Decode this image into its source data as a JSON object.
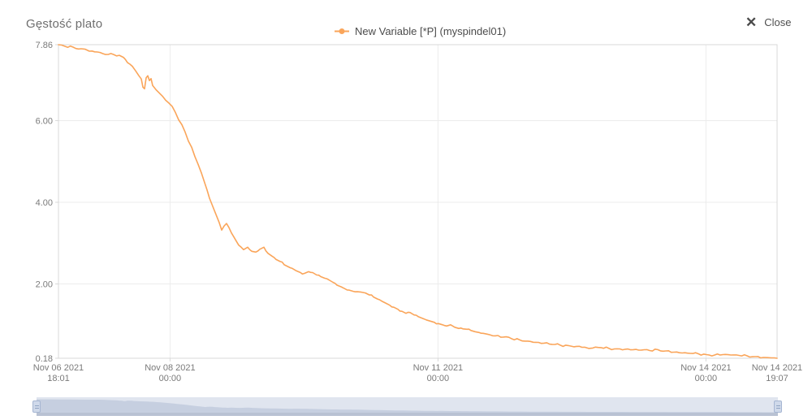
{
  "close_button": {
    "label": "Close",
    "icon": "✕"
  },
  "chart_data": {
    "type": "line",
    "title": "Gęstość plato",
    "legend": {
      "position": "top-center",
      "items": [
        {
          "label": "New Variable [*P] (myspindel01)",
          "marker": "line-with-dot",
          "color": "#faa55a"
        }
      ]
    },
    "xlabel": "",
    "ylabel": "",
    "x_axis": {
      "unit": "minutes since start",
      "start": "Nov 06 2021 18:01",
      "end": "Nov 14 2021 19:07",
      "domain_minutes": [
        0,
        11586
      ],
      "ticks": [
        {
          "t": 0,
          "line1": "Nov 06 2021",
          "line2": "18:01"
        },
        {
          "t": 1799,
          "line1": "Nov 08 2021",
          "line2": "00:00"
        },
        {
          "t": 6119,
          "line1": "Nov 11 2021",
          "line2": "00:00"
        },
        {
          "t": 10439,
          "line1": "Nov 14 2021",
          "line2": "00:00"
        },
        {
          "t": 11586,
          "line1": "Nov 14 2021",
          "line2": "19:07"
        }
      ]
    },
    "y_axis": {
      "min": 0.18,
      "max": 7.86,
      "ticks": [
        {
          "v": 7.86,
          "label": "7.86"
        },
        {
          "v": 6.0,
          "label": "6.00"
        },
        {
          "v": 4.0,
          "label": "4.00"
        },
        {
          "v": 2.0,
          "label": "2.00"
        },
        {
          "v": 0.18,
          "label": "0.18"
        }
      ]
    },
    "grid": true,
    "colors": {
      "line": "#faa55a",
      "grid": "#ececec",
      "border": "#d9d9d9",
      "axis_text": "#7a7a7a",
      "scrollbar_bg": "#e0e5ef",
      "scrollbar_fill": "#c6cfe0",
      "scrollbar_bottom": "#b9c2d3",
      "handle_bg": "#cfd9ea",
      "handle_border": "#a6b6d2"
    },
    "series": [
      {
        "name": "New Variable [*P] (myspindel01)",
        "color": "#faa55a",
        "points": [
          [
            0,
            7.86
          ],
          [
            105,
            7.82
          ],
          [
            236,
            7.8
          ],
          [
            367,
            7.76
          ],
          [
            497,
            7.7
          ],
          [
            628,
            7.68
          ],
          [
            759,
            7.62
          ],
          [
            890,
            7.62
          ],
          [
            982,
            7.6
          ],
          [
            1047,
            7.55
          ],
          [
            1113,
            7.42
          ],
          [
            1191,
            7.33
          ],
          [
            1244,
            7.22
          ],
          [
            1296,
            7.1
          ],
          [
            1335,
            7.02
          ],
          [
            1362,
            6.82
          ],
          [
            1388,
            6.78
          ],
          [
            1414,
            7.05
          ],
          [
            1440,
            7.1
          ],
          [
            1466,
            6.98
          ],
          [
            1492,
            7.03
          ],
          [
            1519,
            6.86
          ],
          [
            1571,
            6.76
          ],
          [
            1623,
            6.68
          ],
          [
            1676,
            6.6
          ],
          [
            1728,
            6.5
          ],
          [
            1781,
            6.43
          ],
          [
            1833,
            6.35
          ],
          [
            1885,
            6.2
          ],
          [
            1938,
            6.02
          ],
          [
            1990,
            5.9
          ],
          [
            2042,
            5.72
          ],
          [
            2095,
            5.5
          ],
          [
            2147,
            5.35
          ],
          [
            2199,
            5.12
          ],
          [
            2252,
            4.93
          ],
          [
            2304,
            4.72
          ],
          [
            2356,
            4.48
          ],
          [
            2396,
            4.3
          ],
          [
            2435,
            4.1
          ],
          [
            2474,
            3.95
          ],
          [
            2514,
            3.8
          ],
          [
            2553,
            3.65
          ],
          [
            2592,
            3.5
          ],
          [
            2631,
            3.32
          ],
          [
            2671,
            3.42
          ],
          [
            2710,
            3.48
          ],
          [
            2749,
            3.38
          ],
          [
            2789,
            3.25
          ],
          [
            2828,
            3.15
          ],
          [
            2867,
            3.05
          ],
          [
            2906,
            2.95
          ],
          [
            2946,
            2.9
          ],
          [
            2985,
            2.84
          ],
          [
            3050,
            2.9
          ],
          [
            3116,
            2.8
          ],
          [
            3181,
            2.78
          ],
          [
            3247,
            2.85
          ],
          [
            3312,
            2.9
          ],
          [
            3378,
            2.75
          ],
          [
            3443,
            2.68
          ],
          [
            3509,
            2.6
          ],
          [
            3574,
            2.55
          ],
          [
            3640,
            2.47
          ],
          [
            3705,
            2.42
          ],
          [
            3771,
            2.38
          ],
          [
            3836,
            2.32
          ],
          [
            3901,
            2.28
          ],
          [
            3967,
            2.26
          ],
          [
            4032,
            2.3
          ],
          [
            4098,
            2.28
          ],
          [
            4163,
            2.22
          ],
          [
            4229,
            2.18
          ],
          [
            4294,
            2.14
          ],
          [
            4360,
            2.1
          ],
          [
            4425,
            2.04
          ],
          [
            4491,
            1.97
          ],
          [
            4556,
            1.93
          ],
          [
            4621,
            1.88
          ],
          [
            4687,
            1.85
          ],
          [
            4752,
            1.82
          ],
          [
            4818,
            1.81
          ],
          [
            4883,
            1.8
          ],
          [
            4949,
            1.78
          ],
          [
            5014,
            1.73
          ],
          [
            5080,
            1.68
          ],
          [
            5145,
            1.63
          ],
          [
            5211,
            1.58
          ],
          [
            5276,
            1.53
          ],
          [
            5341,
            1.48
          ],
          [
            5407,
            1.43
          ],
          [
            5472,
            1.38
          ],
          [
            5538,
            1.33
          ],
          [
            5603,
            1.28
          ],
          [
            5669,
            1.3
          ],
          [
            5734,
            1.24
          ],
          [
            5800,
            1.2
          ],
          [
            5865,
            1.16
          ],
          [
            5931,
            1.12
          ],
          [
            5996,
            1.09
          ],
          [
            6061,
            1.06
          ],
          [
            6127,
            1.03
          ],
          [
            6192,
            1.0
          ],
          [
            6258,
            0.97
          ],
          [
            6323,
            1.0
          ],
          [
            6389,
            0.94
          ],
          [
            6454,
            0.91
          ],
          [
            6520,
            0.9
          ],
          [
            6585,
            0.89
          ],
          [
            6651,
            0.86
          ],
          [
            6716,
            0.83
          ],
          [
            6781,
            0.81
          ],
          [
            6847,
            0.79
          ],
          [
            6912,
            0.77
          ],
          [
            7043,
            0.73
          ],
          [
            7174,
            0.7
          ],
          [
            7305,
            0.66
          ],
          [
            7436,
            0.63
          ],
          [
            7567,
            0.6
          ],
          [
            7698,
            0.57
          ],
          [
            7829,
            0.55
          ],
          [
            7960,
            0.52
          ],
          [
            8091,
            0.5
          ],
          [
            8222,
            0.49
          ],
          [
            8353,
            0.47
          ],
          [
            8484,
            0.45
          ],
          [
            8614,
            0.43
          ],
          [
            8745,
            0.44
          ],
          [
            8876,
            0.42
          ],
          [
            9007,
            0.41
          ],
          [
            9138,
            0.4
          ],
          [
            9269,
            0.39
          ],
          [
            9400,
            0.38
          ],
          [
            9531,
            0.37
          ],
          [
            9662,
            0.39
          ],
          [
            9793,
            0.36
          ],
          [
            9924,
            0.33
          ],
          [
            10055,
            0.31
          ],
          [
            10186,
            0.3
          ],
          [
            10317,
            0.29
          ],
          [
            10448,
            0.27
          ],
          [
            10579,
            0.26
          ],
          [
            10710,
            0.27
          ],
          [
            10841,
            0.26
          ],
          [
            10972,
            0.25
          ],
          [
            11103,
            0.24
          ],
          [
            11234,
            0.22
          ],
          [
            11365,
            0.2
          ],
          [
            11495,
            0.19
          ],
          [
            11586,
            0.18
          ]
        ]
      }
    ]
  }
}
